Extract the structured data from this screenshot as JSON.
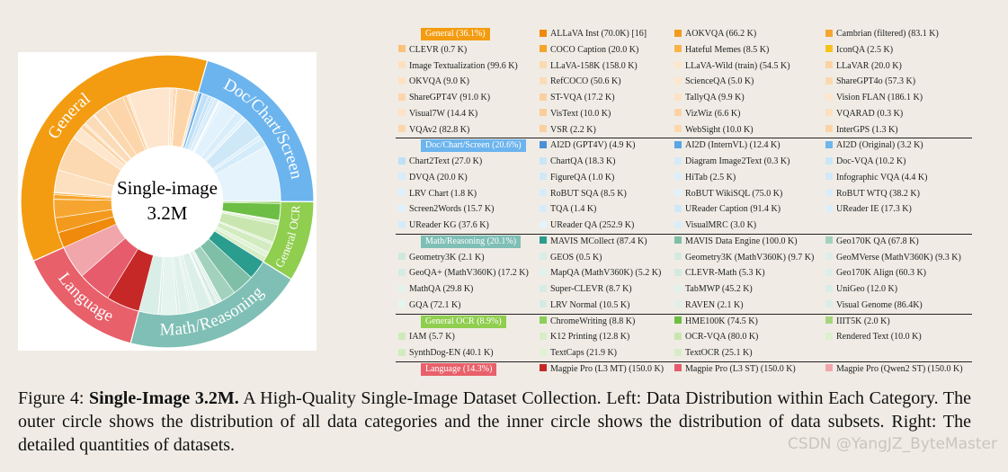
{
  "chart_data": {
    "type": "sunburst",
    "center_label": "Single-image",
    "center_value_label": "3.2M",
    "groups": [
      {
        "name": "General",
        "table_label": "General (36.1%)",
        "value": 36.1,
        "color": "#f39c12",
        "datasets": [
          {
            "label": "ALLaVA Inst (70.0K) [16]",
            "value": 70.0,
            "color": "#ef8a0c"
          },
          {
            "label": "AOKVQA (66.2 K)",
            "value": 66.2,
            "color": "#f39a1e"
          },
          {
            "label": "Cambrian (filtered) (83.1 K)",
            "value": 83.1,
            "color": "#f6a630"
          },
          {
            "label": "CLEVR (0.7 K)",
            "value": 0.7,
            "color": "#fbc27a"
          },
          {
            "label": "COCO Caption (20.0 K)",
            "value": 20.0,
            "color": "#f6a52a"
          },
          {
            "label": "Hateful Memes (8.5 K)",
            "value": 8.5,
            "color": "#f8b448"
          },
          {
            "label": "IconQA (2.5 K)",
            "value": 2.5,
            "color": "#f6c21c"
          },
          {
            "label": "Image Textualization (99.6 K)",
            "value": 99.6,
            "color": "#fde0bf"
          },
          {
            "label": "LLaVA-158K (158.0 K)",
            "value": 158.0,
            "color": "#fcd9b0"
          },
          {
            "label": "LLaVA-Wild (train) (54.5 K)",
            "value": 54.5,
            "color": "#fde6cc"
          },
          {
            "label": "LLaVAR (20.0 K)",
            "value": 20.0,
            "color": "#fcd3a3"
          },
          {
            "label": "OKVQA (9.0 K)",
            "value": 9.0,
            "color": "#fde2c4"
          },
          {
            "label": "RefCOCO (50.6 K)",
            "value": 50.6,
            "color": "#fcdcb8"
          },
          {
            "label": "ScienceQA (5.0 K)",
            "value": 5.0,
            "color": "#fde6cd"
          },
          {
            "label": "ShareGPT4o (57.3 K)",
            "value": 57.3,
            "color": "#fcd8ae"
          },
          {
            "label": "ShareGPT4V (91.0 K)",
            "value": 91.0,
            "color": "#fcd6aa"
          },
          {
            "label": "ST-VQA (17.2 K)",
            "value": 17.2,
            "color": "#fbd0a0"
          },
          {
            "label": "TallyQA (9.9 K)",
            "value": 9.9,
            "color": "#fde2c4"
          },
          {
            "label": "Vision FLAN (186.1 K)",
            "value": 186.1,
            "color": "#fde6cd"
          },
          {
            "label": "Visual7W (14.4 K)",
            "value": 14.4,
            "color": "#fde3c8"
          },
          {
            "label": "VisText (10.0 K)",
            "value": 10.0,
            "color": "#fbcd9a"
          },
          {
            "label": "VizWiz (6.6 K)",
            "value": 6.6,
            "color": "#fcd2a4"
          },
          {
            "label": "VQARAD (0.3 K)",
            "value": 0.3,
            "color": "#fde0bf"
          },
          {
            "label": "VQAv2 (82.8 K)",
            "value": 82.8,
            "color": "#fcd6aa"
          },
          {
            "label": "VSR (2.2 K)",
            "value": 2.2,
            "color": "#fbd0a0"
          },
          {
            "label": "WebSight (10.0 K)",
            "value": 10.0,
            "color": "#fcd8ae"
          },
          {
            "label": "InterGPS (1.3 K)",
            "value": 1.3,
            "color": "#fbd3a6"
          }
        ]
      },
      {
        "name": "Doc/Chart/Screen",
        "table_label": "Doc/Chart/Screen (20.6%)",
        "value": 20.6,
        "color": "#6cb4ee",
        "datasets": [
          {
            "label": "AI2D (GPT4V) (4.9 K)",
            "value": 4.9,
            "color": "#4a90d9"
          },
          {
            "label": "AI2D (InternVL) (12.4 K)",
            "value": 12.4,
            "color": "#5aa5e4"
          },
          {
            "label": "AI2D (Original) (3.2 K)",
            "value": 3.2,
            "color": "#6fb6ec"
          },
          {
            "label": "Chart2Text (27.0 K)",
            "value": 27.0,
            "color": "#bfe0f6"
          },
          {
            "label": "ChartQA (18.3 K)",
            "value": 18.3,
            "color": "#c9e5f8"
          },
          {
            "label": "Diagram Image2Text (0.3 K)",
            "value": 0.3,
            "color": "#d3eaf9"
          },
          {
            "label": "Doc-VQA (10.2 K)",
            "value": 10.2,
            "color": "#cae6f8"
          },
          {
            "label": "DVQA (20.0 K)",
            "value": 20.0,
            "color": "#d6ecfa"
          },
          {
            "label": "FigureQA (1.0 K)",
            "value": 1.0,
            "color": "#d0e9f9"
          },
          {
            "label": "HiTab (2.5 K)",
            "value": 2.5,
            "color": "#dbeffb"
          },
          {
            "label": "Infographic VQA (4.4 K)",
            "value": 4.4,
            "color": "#d2e9f9"
          },
          {
            "label": "LRV Chart (1.8 K)",
            "value": 1.8,
            "color": "#ddf0fb"
          },
          {
            "label": "RoBUT SQA (8.5 K)",
            "value": 8.5,
            "color": "#d6ecfa"
          },
          {
            "label": "RoBUT WikiSQL (75.0 K)",
            "value": 75.0,
            "color": "#e2f2fc"
          },
          {
            "label": "RoBUT WTQ (38.2 K)",
            "value": 38.2,
            "color": "#d9eefa"
          },
          {
            "label": "Screen2Words (15.7 K)",
            "value": 15.7,
            "color": "#e0f1fb"
          },
          {
            "label": "TQA (1.4 K)",
            "value": 1.4,
            "color": "#d6ecfa"
          },
          {
            "label": "UReader Caption (91.4 K)",
            "value": 91.4,
            "color": "#cfe8f8"
          },
          {
            "label": "UReader IE (17.3 K)",
            "value": 17.3,
            "color": "#dbeffb"
          },
          {
            "label": "UReader KG (37.6 K)",
            "value": 37.6,
            "color": "#d4ebf9"
          },
          {
            "label": "UReader QA (252.9 K)",
            "value": 252.9,
            "color": "#e4f3fc"
          },
          {
            "label": "VisualMRC (3.0 K)",
            "value": 3.0,
            "color": "#d9eefa"
          }
        ]
      },
      {
        "name": "Math/Reasoning",
        "table_label": "Math/Reasoning (20.1%)",
        "value": 20.1,
        "color": "#7fbfb5",
        "datasets": [
          {
            "label": "MAVIS MCollect (87.4 K)",
            "value": 87.4,
            "color": "#2a9d8f"
          },
          {
            "label": "MAVIS Data Engine (100.0 K)",
            "value": 100.0,
            "color": "#7fbfa8"
          },
          {
            "label": "Geo170K QA (67.8 K)",
            "value": 67.8,
            "color": "#a2d2bd"
          },
          {
            "label": "Geometry3K (2.1 K)",
            "value": 2.1,
            "color": "#cfe8de"
          },
          {
            "label": "GEOS (0.5 K)",
            "value": 0.5,
            "color": "#d8ede5"
          },
          {
            "label": "Geometry3K (MathV360K) (9.7 K)",
            "value": 9.7,
            "color": "#d2eae1"
          },
          {
            "label": "GeoMVerse (MathV360K) (9.3 K)",
            "value": 9.3,
            "color": "#dcefe8"
          },
          {
            "label": "GeoQA+ (MathV360K) (17.2 K)",
            "value": 17.2,
            "color": "#d5ebe3"
          },
          {
            "label": "MapQA (MathV360K) (5.2 K)",
            "value": 5.2,
            "color": "#e0f1eb"
          },
          {
            "label": "CLEVR-Math (5.3 K)",
            "value": 5.3,
            "color": "#d3eae1"
          },
          {
            "label": "Geo170K Align (60.3 K)",
            "value": 60.3,
            "color": "#dcefe8"
          },
          {
            "label": "MathQA (29.8 K)",
            "value": 29.8,
            "color": "#e3f3ed"
          },
          {
            "label": "Super-CLEVR (8.7 K)",
            "value": 8.7,
            "color": "#d6ece4"
          },
          {
            "label": "TabMWP (45.2 K)",
            "value": 45.2,
            "color": "#e0f1eb"
          },
          {
            "label": "UniGeo (12.0 K)",
            "value": 12.0,
            "color": "#d8ede5"
          },
          {
            "label": "GQA (72.1 K)",
            "value": 72.1,
            "color": "#e5f4ee"
          },
          {
            "label": "LRV Normal (10.5 K)",
            "value": 10.5,
            "color": "#d4ebe3"
          },
          {
            "label": "RAVEN (2.1 K)",
            "value": 2.1,
            "color": "#dff0ea"
          },
          {
            "label": "Visual Genome (86.4K)",
            "value": 86.4,
            "color": "#d9eee6"
          }
        ]
      },
      {
        "name": "General OCR",
        "table_label": "General OCR (8.9%)",
        "value": 8.9,
        "color": "#8fce4f",
        "datasets": [
          {
            "label": "ChromeWriting (8.8 K)",
            "value": 8.8,
            "color": "#8ccf5a"
          },
          {
            "label": "HME100K (74.5 K)",
            "value": 74.5,
            "color": "#6dbe45"
          },
          {
            "label": "IIIT5K (2.0 K)",
            "value": 2.0,
            "color": "#a5d67d"
          },
          {
            "label": "IAM (5.7 K)",
            "value": 5.7,
            "color": "#cfe9bb"
          },
          {
            "label": "K12 Printing (12.8 K)",
            "value": 12.8,
            "color": "#d8edc8"
          },
          {
            "label": "OCR-VQA (80.0 K)",
            "value": 80.0,
            "color": "#c9e6b1"
          },
          {
            "label": "Rendered Text (10.0 K)",
            "value": 10.0,
            "color": "#ddf0cf"
          },
          {
            "label": "SynthDog-EN (40.1 K)",
            "value": 40.1,
            "color": "#d3ebc1"
          },
          {
            "label": "TextCaps (21.9 K)",
            "value": 21.9,
            "color": "#e0f2d4"
          },
          {
            "label": "TextOCR (25.1 K)",
            "value": 25.1,
            "color": "#d6edc6"
          }
        ]
      },
      {
        "name": "Language",
        "table_label": "Language (14.3%)",
        "value": 14.3,
        "color": "#e8606a",
        "datasets": [
          {
            "label": "Magpie Pro (L3 MT) (150.0 K)",
            "value": 150.0,
            "color": "#c62828"
          },
          {
            "label": "Magpie Pro (L3 ST) (150.0 K)",
            "value": 150.0,
            "color": "#e65c6c"
          },
          {
            "label": "Magpie Pro (Qwen2 ST) (150.0 K)",
            "value": 150.0,
            "color": "#f1a6ac"
          }
        ]
      }
    ]
  },
  "caption": {
    "label": "Figure 4:",
    "title": "Single-Image 3.2M.",
    "text": "A High-Quality Single-Image Dataset Collection. Left: Data Distribution within Each Category. The outer circle shows the distribution of all data categories and the inner circle shows the distribution of data subsets. Right: The detailed quantities of datasets."
  },
  "watermark": "CSDN @YangJZ_ByteMaster"
}
